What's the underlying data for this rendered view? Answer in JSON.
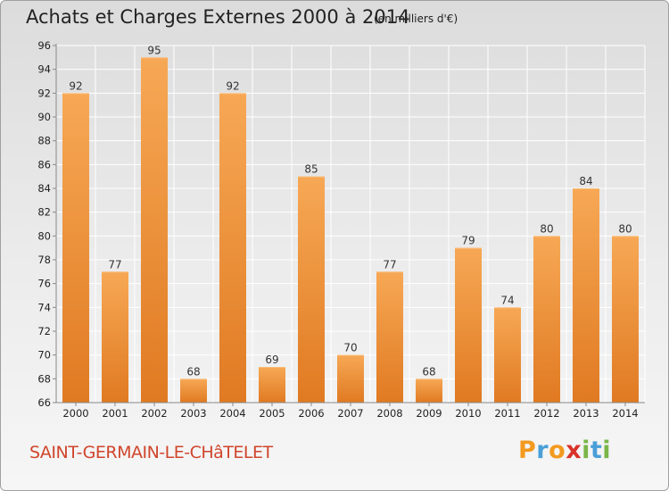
{
  "header": {
    "title": "Achats et Charges Externes 2000 à 2014",
    "subtitle": "(en milliers d'€)"
  },
  "footer": {
    "town": "SAINT-GERMAIN-LE-CHâTELET",
    "logo": {
      "p": "P",
      "r": "r",
      "o": "o",
      "x": "x",
      "i": "i",
      "t": "t",
      "i2": "i"
    }
  },
  "chart_data": {
    "type": "bar",
    "title": "Achats et Charges Externes 2000 à 2014",
    "subtitle": "(en milliers d'€)",
    "categories": [
      "2000",
      "2001",
      "2002",
      "2003",
      "2004",
      "2005",
      "2006",
      "2007",
      "2008",
      "2009",
      "2010",
      "2011",
      "2012",
      "2013",
      "2014"
    ],
    "values": [
      92,
      77,
      95,
      68,
      92,
      69,
      85,
      70,
      77,
      68,
      79,
      74,
      80,
      84,
      80
    ],
    "ylim": [
      66,
      96
    ],
    "yticks": [
      66,
      68,
      70,
      72,
      74,
      76,
      78,
      80,
      82,
      84,
      86,
      88,
      90,
      92,
      94,
      96
    ],
    "grid": true,
    "colors": {
      "bar_top": "#f7a855",
      "bar_bottom": "#e07a22",
      "grid": "#ffffff",
      "axis": "#888888"
    }
  }
}
